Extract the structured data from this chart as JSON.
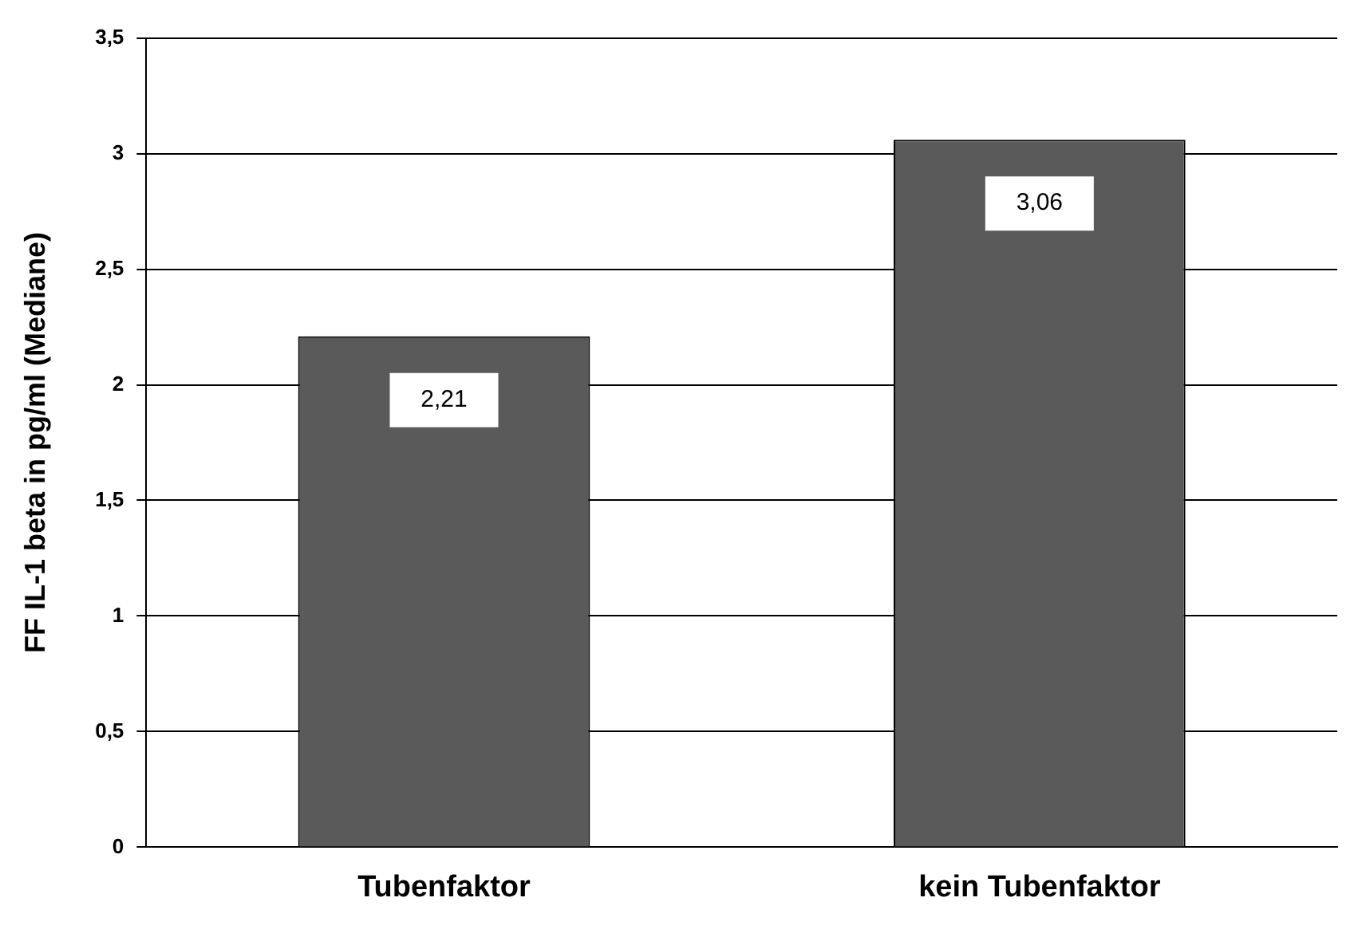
{
  "chart_data": {
    "type": "bar",
    "ylabel": "FF IL-1 beta in pg/ml (Mediane)",
    "categories": [
      "Tubenfaktor",
      "kein Tubenfaktor"
    ],
    "values": [
      2.21,
      3.06
    ],
    "color": "#5a5a5a",
    "value_labels": [
      "2,21",
      "3,06"
    ],
    "ylim": [
      0,
      3.5
    ],
    "yticks": [
      0,
      {
        "value": 0.5,
        "label": "0,5"
      },
      1,
      {
        "value": 1.5,
        "label": "1,5"
      },
      2,
      {
        "value": 2.5,
        "label": "2,5"
      },
      3,
      {
        "value": 3.5,
        "label": "3,5"
      }
    ],
    "grid": "y",
    "legend": false
  }
}
